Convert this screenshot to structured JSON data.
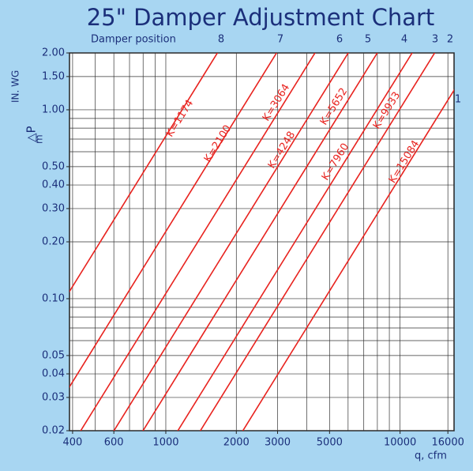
{
  "chart_data": {
    "type": "line",
    "title": "25\" Damper Adjustment Chart",
    "top_label": "Damper position",
    "damper_positions": [
      "8",
      "7",
      "6",
      "5",
      "4",
      "3",
      "2",
      "1"
    ],
    "x_label": "q, cfm",
    "y_label": "△P",
    "y_label_sub": "m",
    "y_units": "IN. WG",
    "log_x": true,
    "log_y": true,
    "color": "#e8221e",
    "xlim": [
      388,
      17000
    ],
    "ylim": [
      0.02,
      2.0
    ],
    "xticks": [
      400,
      600,
      1000,
      2000,
      3000,
      5000,
      10000,
      16000
    ],
    "xgrid": [
      400,
      500,
      600,
      700,
      800,
      900,
      1000,
      2000,
      3000,
      4000,
      5000,
      6000,
      7000,
      8000,
      9000,
      10000,
      16000
    ],
    "yticks": [
      {
        "value": 2.0,
        "label": "2.00"
      },
      {
        "value": 1.5,
        "label": "1.50"
      },
      {
        "value": 1.0,
        "label": "1.00"
      },
      {
        "value": 0.5,
        "label": "0.50"
      },
      {
        "value": 0.4,
        "label": "0.40"
      },
      {
        "value": 0.3,
        "label": "0.30"
      },
      {
        "value": 0.2,
        "label": "0.20"
      },
      {
        "value": 0.1,
        "label": "0.10"
      },
      {
        "value": 0.05,
        "label": "0.05"
      },
      {
        "value": 0.04,
        "label": "0.04"
      },
      {
        "value": 0.03,
        "label": "0.03"
      },
      {
        "value": 0.02,
        "label": "0.02"
      }
    ],
    "ygrid": [
      2.0,
      1.5,
      1.0,
      0.9,
      0.8,
      0.7,
      0.6,
      0.5,
      0.4,
      0.3,
      0.2,
      0.1,
      0.09,
      0.08,
      0.07,
      0.06,
      0.05,
      0.04,
      0.03,
      0.02
    ],
    "series": [
      {
        "name": "K=1174",
        "K": 1174
      },
      {
        "name": "K=2100",
        "K": 2100
      },
      {
        "name": "K=3064",
        "K": 3064
      },
      {
        "name": "K=4248",
        "K": 4248
      },
      {
        "name": "K=5652",
        "K": 5652
      },
      {
        "name": "K=7960",
        "K": 7960
      },
      {
        "name": "K=9933",
        "K": 9933
      },
      {
        "name": "K=15084",
        "K": 15084
      }
    ]
  }
}
